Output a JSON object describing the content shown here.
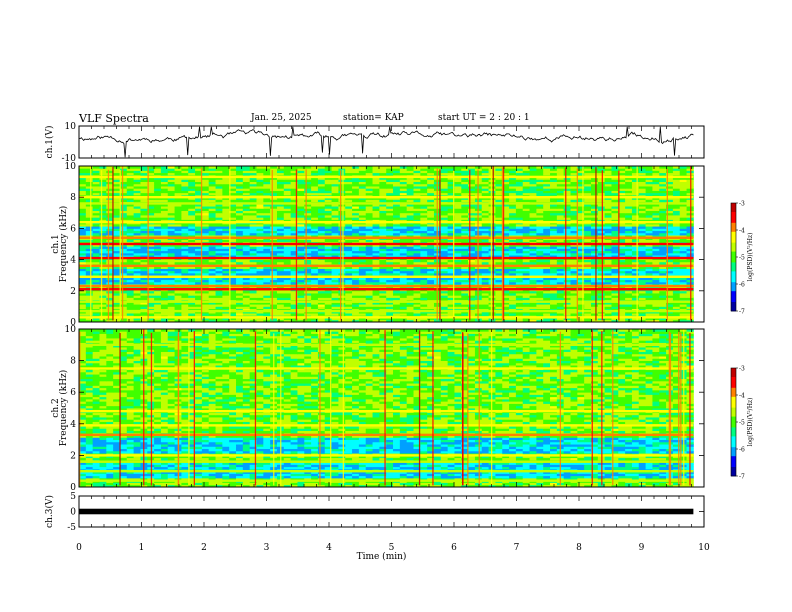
{
  "header": {
    "title": "VLF Spectra",
    "date": "Jan. 25, 2025",
    "station": "station= KAP",
    "start": "start  UT =  2 : 20 : 1"
  },
  "colors": {
    "colormap": [
      "#0000a0",
      "#0000ff",
      "#00a0ff",
      "#00ffff",
      "#00ff80",
      "#40ff00",
      "#c0ff00",
      "#ffff00",
      "#ff8000",
      "#ff0000",
      "#c00000",
      "#ffffff"
    ]
  },
  "chart_data": [
    {
      "type": "line",
      "name": "ch1-waveform",
      "ylabel": "ch.1(V)",
      "ylim": [
        -10,
        10
      ],
      "yticks": [
        "10",
        "-10"
      ],
      "xlim": [
        0,
        10
      ],
      "x_end": 9.83,
      "mean": 3,
      "amplitude": 5,
      "points": 520
    },
    {
      "type": "heatmap",
      "name": "ch1-spectrogram",
      "ylabel_channel": "ch.1",
      "ylabel": "Frequency (kHz)",
      "ylim": [
        0,
        10
      ],
      "yticks": [
        "0",
        "2",
        "4",
        "6",
        "8",
        "10"
      ],
      "xlim": [
        0,
        10
      ],
      "x_end": 9.83,
      "colorbar": {
        "label": "log(PSD)(V²/Hz)",
        "range": [
          -7,
          -3
        ],
        "ticks": [
          "-3",
          "-4",
          "-5",
          "-6",
          "-7"
        ]
      },
      "bands_khz": [
        {
          "f": 0.3,
          "level": -4.3
        },
        {
          "f": 0.7,
          "level": -4.8
        },
        {
          "f": 1.3,
          "level": -4.6
        },
        {
          "f": 2.1,
          "level": -3.6
        },
        {
          "f": 2.3,
          "level": -3.8
        },
        {
          "f": 2.9,
          "level": -4.2
        },
        {
          "f": 3.6,
          "level": -3.9
        },
        {
          "f": 4.1,
          "level": -3.7
        },
        {
          "f": 5.0,
          "level": -3.5
        },
        {
          "f": 5.4,
          "level": -3.9
        },
        {
          "f": 6.4,
          "level": -4.1
        },
        {
          "f": 7.6,
          "level": -4.6
        },
        {
          "f": 8.0,
          "level": -4.3
        },
        {
          "f": 9.3,
          "level": -4.4
        }
      ],
      "blue_bands_khz": [
        [
          2.5,
          3.4
        ],
        [
          4.2,
          4.9
        ],
        [
          5.6,
          6.2
        ]
      ],
      "background_level": -4.9
    },
    {
      "type": "heatmap",
      "name": "ch2-spectrogram",
      "ylabel_channel": "ch.2",
      "ylabel": "Frequency (kHz)",
      "ylim": [
        0,
        10
      ],
      "yticks": [
        "0",
        "2",
        "4",
        "6",
        "8",
        "10"
      ],
      "xlim": [
        0,
        10
      ],
      "x_end": 9.83,
      "colorbar": {
        "label": "log(PSD)(V²/Hz)",
        "range": [
          -7,
          -3
        ],
        "ticks": [
          "-3",
          "-4",
          "-5",
          "-6",
          "-7"
        ]
      },
      "bands_khz": [
        {
          "f": 0.4,
          "level": -4.6
        },
        {
          "f": 1.0,
          "level": -4.8
        },
        {
          "f": 1.6,
          "level": -4.7
        },
        {
          "f": 2.0,
          "level": -4.2
        },
        {
          "f": 3.3,
          "level": -4.0
        },
        {
          "f": 3.9,
          "level": -4.3
        },
        {
          "f": 4.8,
          "level": -4.2
        },
        {
          "f": 7.5,
          "level": -4.3
        },
        {
          "f": 9.0,
          "level": -4.5
        }
      ],
      "blue_bands_khz": [
        [
          0.6,
          1.5
        ],
        [
          2.2,
          3.1
        ]
      ],
      "background_level": -4.9
    },
    {
      "type": "line",
      "name": "ch3-waveform",
      "ylabel": "ch.3(V)",
      "ylim": [
        -5,
        5
      ],
      "yticks": [
        "5",
        "0",
        "-5"
      ],
      "xlim": [
        0,
        10
      ],
      "x_end": 9.83,
      "mean": 0,
      "amplitude": 0.9
    },
    {
      "type": "axis",
      "name": "time-axis",
      "xlabel": "Time (min)",
      "xticks": [
        "0",
        "1",
        "2",
        "3",
        "4",
        "5",
        "6",
        "7",
        "8",
        "9",
        "10"
      ]
    }
  ]
}
